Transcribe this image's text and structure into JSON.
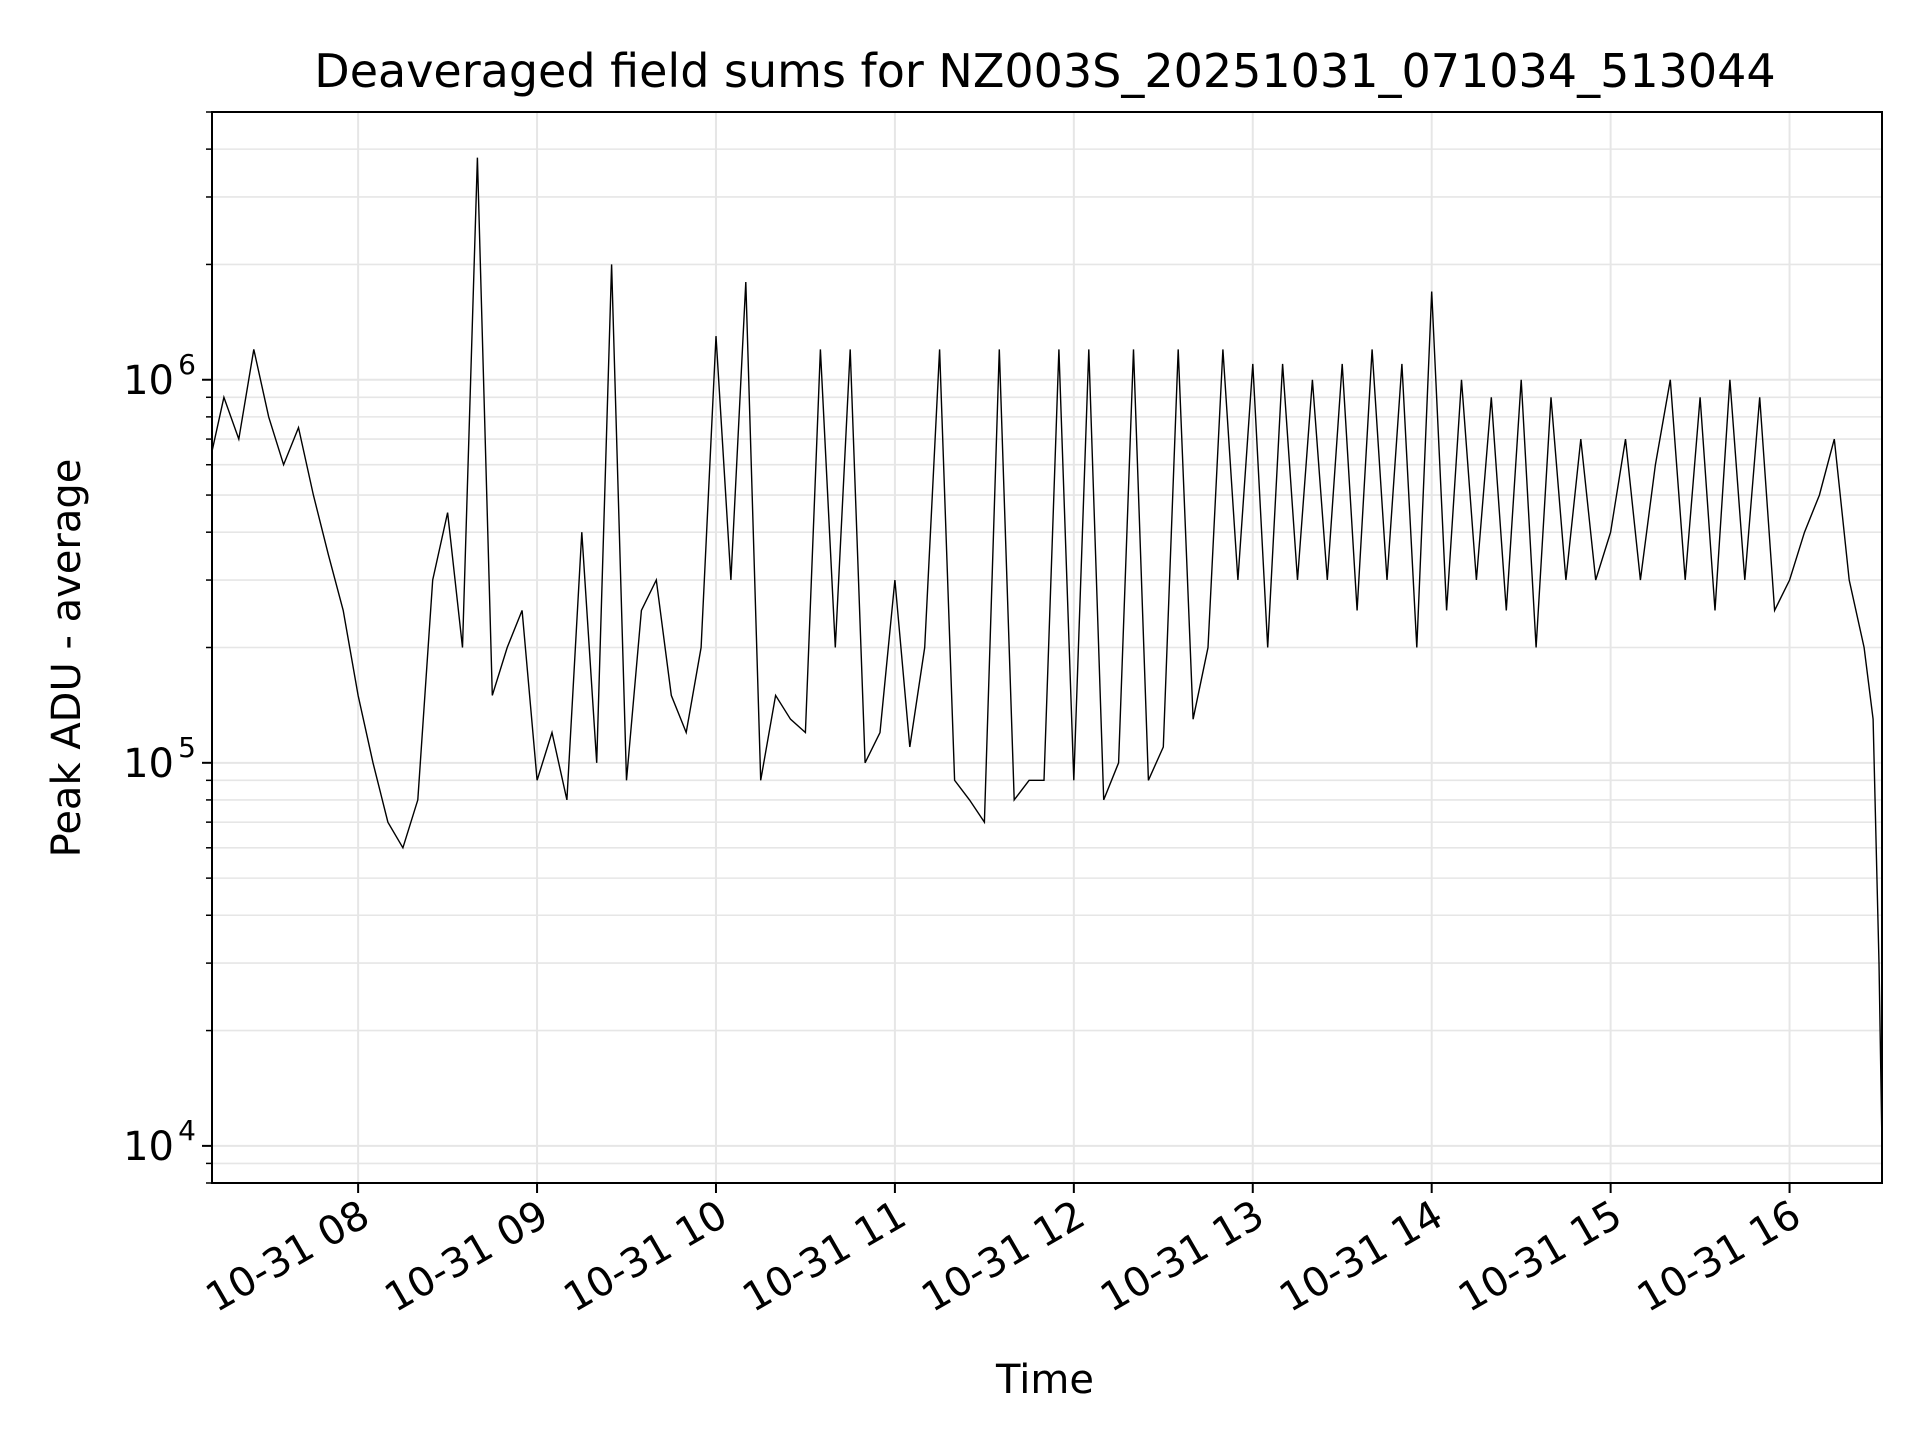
{
  "chart_data": {
    "type": "line",
    "title": "Deaveraged field sums for NZ003S_20251031_071034_513044",
    "xlabel": "Time",
    "ylabel": "Peak ADU - average",
    "yscale": "log",
    "ylim": [
      8000,
      5000000
    ],
    "xlim": [
      "2025-10-31 07:11",
      "2025-10-31 16:31"
    ],
    "x_ticks": [
      "10-31 08",
      "10-31 09",
      "10-31 10",
      "10-31 11",
      "10-31 12",
      "10-31 13",
      "10-31 14",
      "10-31 15",
      "10-31 16"
    ],
    "y_ticks": [
      {
        "base": "10",
        "exp": "4",
        "value": 10000
      },
      {
        "base": "10",
        "exp": "5",
        "value": 100000
      },
      {
        "base": "10",
        "exp": "6",
        "value": 1000000
      }
    ],
    "grid": true,
    "line_color": "#000000",
    "grid_color": "#e6e6e6",
    "series": [
      {
        "x": [
          "2025-10-31 07:11",
          "2025-10-31 07:15",
          "2025-10-31 07:20",
          "2025-10-31 07:25",
          "2025-10-31 07:30",
          "2025-10-31 07:35",
          "2025-10-31 07:40",
          "2025-10-31 07:45",
          "2025-10-31 07:50",
          "2025-10-31 07:55",
          "2025-10-31 08:00",
          "2025-10-31 08:05",
          "2025-10-31 08:10",
          "2025-10-31 08:15",
          "2025-10-31 08:20",
          "2025-10-31 08:25",
          "2025-10-31 08:30",
          "2025-10-31 08:35",
          "2025-10-31 08:40",
          "2025-10-31 08:45",
          "2025-10-31 08:50",
          "2025-10-31 08:55",
          "2025-10-31 09:00",
          "2025-10-31 09:05",
          "2025-10-31 09:10",
          "2025-10-31 09:15",
          "2025-10-31 09:20",
          "2025-10-31 09:25",
          "2025-10-31 09:30",
          "2025-10-31 09:35",
          "2025-10-31 09:40",
          "2025-10-31 09:45",
          "2025-10-31 09:50",
          "2025-10-31 09:55",
          "2025-10-31 10:00",
          "2025-10-31 10:05",
          "2025-10-31 10:10",
          "2025-10-31 10:15",
          "2025-10-31 10:20",
          "2025-10-31 10:25",
          "2025-10-31 10:30",
          "2025-10-31 10:35",
          "2025-10-31 10:40",
          "2025-10-31 10:45",
          "2025-10-31 10:50",
          "2025-10-31 10:55",
          "2025-10-31 11:00",
          "2025-10-31 11:05",
          "2025-10-31 11:10",
          "2025-10-31 11:15",
          "2025-10-31 11:20",
          "2025-10-31 11:25",
          "2025-10-31 11:30",
          "2025-10-31 11:35",
          "2025-10-31 11:40",
          "2025-10-31 11:45",
          "2025-10-31 11:50",
          "2025-10-31 11:55",
          "2025-10-31 12:00",
          "2025-10-31 12:05",
          "2025-10-31 12:10",
          "2025-10-31 12:15",
          "2025-10-31 12:20",
          "2025-10-31 12:25",
          "2025-10-31 12:30",
          "2025-10-31 12:35",
          "2025-10-31 12:40",
          "2025-10-31 12:45",
          "2025-10-31 12:50",
          "2025-10-31 12:55",
          "2025-10-31 13:00",
          "2025-10-31 13:05",
          "2025-10-31 13:10",
          "2025-10-31 13:15",
          "2025-10-31 13:20",
          "2025-10-31 13:25",
          "2025-10-31 13:30",
          "2025-10-31 13:35",
          "2025-10-31 13:40",
          "2025-10-31 13:45",
          "2025-10-31 13:50",
          "2025-10-31 13:55",
          "2025-10-31 14:00",
          "2025-10-31 14:05",
          "2025-10-31 14:10",
          "2025-10-31 14:15",
          "2025-10-31 14:20",
          "2025-10-31 14:25",
          "2025-10-31 14:30",
          "2025-10-31 14:35",
          "2025-10-31 14:40",
          "2025-10-31 14:45",
          "2025-10-31 14:50",
          "2025-10-31 14:55",
          "2025-10-31 15:00",
          "2025-10-31 15:05",
          "2025-10-31 15:10",
          "2025-10-31 15:15",
          "2025-10-31 15:20",
          "2025-10-31 15:25",
          "2025-10-31 15:30",
          "2025-10-31 15:35",
          "2025-10-31 15:40",
          "2025-10-31 15:45",
          "2025-10-31 15:50",
          "2025-10-31 15:55",
          "2025-10-31 16:00",
          "2025-10-31 16:05",
          "2025-10-31 16:10",
          "2025-10-31 16:15",
          "2025-10-31 16:20",
          "2025-10-31 16:25",
          "2025-10-31 16:28",
          "2025-10-31 16:30",
          "2025-10-31 16:31"
        ],
        "y": [
          650000,
          900000,
          700000,
          1200000,
          800000,
          600000,
          750000,
          500000,
          350000,
          250000,
          150000,
          100000,
          70000,
          60000,
          80000,
          300000,
          450000,
          200000,
          3800000,
          150000,
          200000,
          250000,
          90000,
          120000,
          80000,
          400000,
          100000,
          2000000,
          90000,
          250000,
          300000,
          150000,
          120000,
          200000,
          1300000,
          300000,
          1800000,
          90000,
          150000,
          130000,
          120000,
          1200000,
          200000,
          1200000,
          100000,
          120000,
          300000,
          110000,
          200000,
          1200000,
          90000,
          80000,
          70000,
          1200000,
          80000,
          90000,
          90000,
          1200000,
          90000,
          1200000,
          80000,
          100000,
          1200000,
          90000,
          110000,
          1200000,
          130000,
          200000,
          1200000,
          300000,
          1100000,
          200000,
          1100000,
          300000,
          1000000,
          300000,
          1100000,
          250000,
          1200000,
          300000,
          1100000,
          200000,
          1700000,
          250000,
          1000000,
          300000,
          900000,
          250000,
          1000000,
          200000,
          900000,
          300000,
          700000,
          300000,
          400000,
          700000,
          300000,
          600000,
          1000000,
          300000,
          900000,
          250000,
          1000000,
          300000,
          900000,
          250000,
          300000,
          400000,
          500000,
          700000,
          300000,
          200000,
          130000,
          30000,
          10000
        ]
      }
    ]
  }
}
